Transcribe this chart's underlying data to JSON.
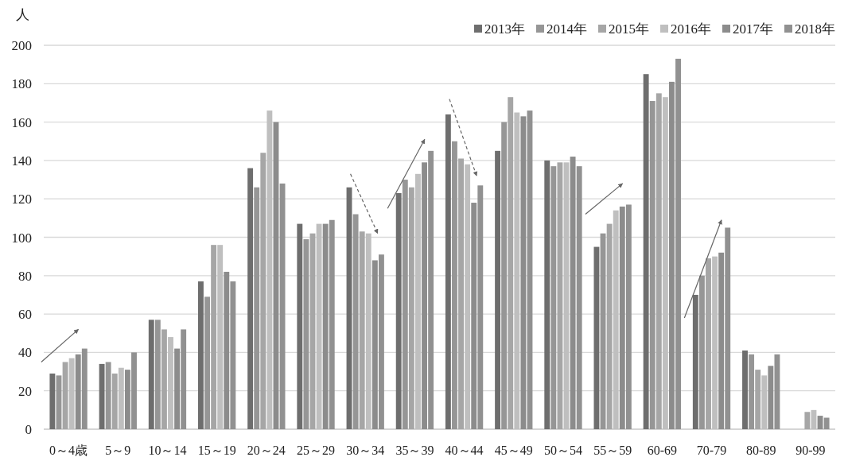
{
  "chart_data": {
    "type": "bar",
    "ylabel": "人",
    "categories": [
      "0～4歳",
      "5～9",
      "10～14",
      "15～19",
      "20～24",
      "25～29",
      "30～34",
      "35～39",
      "40～44",
      "45～49",
      "50～54",
      "55～59",
      "60-69",
      "70-79",
      "80-89",
      "90-99"
    ],
    "series": [
      {
        "name": "2013年",
        "color": "#6e6e6e",
        "values": [
          29,
          34,
          57,
          77,
          136,
          107,
          126,
          123,
          164,
          145,
          140,
          95,
          185,
          70,
          41,
          null
        ]
      },
      {
        "name": "2014年",
        "color": "#969696",
        "values": [
          28,
          35,
          57,
          69,
          126,
          99,
          112,
          130,
          150,
          160,
          137,
          102,
          171,
          80,
          39,
          null
        ]
      },
      {
        "name": "2015年",
        "color": "#a6a6a6",
        "values": [
          35,
          29,
          52,
          96,
          144,
          102,
          103,
          126,
          141,
          173,
          139,
          107,
          175,
          89,
          31,
          9
        ]
      },
      {
        "name": "2016年",
        "color": "#bfbfbf",
        "values": [
          37,
          32,
          48,
          96,
          166,
          107,
          102,
          133,
          138,
          165,
          139,
          114,
          173,
          90,
          28,
          10
        ]
      },
      {
        "name": "2017年",
        "color": "#8c8c8c",
        "values": [
          39,
          31,
          42,
          82,
          160,
          107,
          88,
          139,
          118,
          163,
          142,
          116,
          181,
          92,
          33,
          7
        ]
      },
      {
        "name": "2018年",
        "color": "#919191",
        "values": [
          42,
          40,
          52,
          77,
          128,
          109,
          91,
          145,
          127,
          166,
          137,
          117,
          193,
          105,
          39,
          6
        ]
      }
    ],
    "ylim": [
      0,
      200
    ],
    "yticks": [
      0,
      20,
      40,
      60,
      80,
      100,
      120,
      140,
      160,
      180,
      200
    ],
    "grid": "y",
    "legend": "top right"
  }
}
